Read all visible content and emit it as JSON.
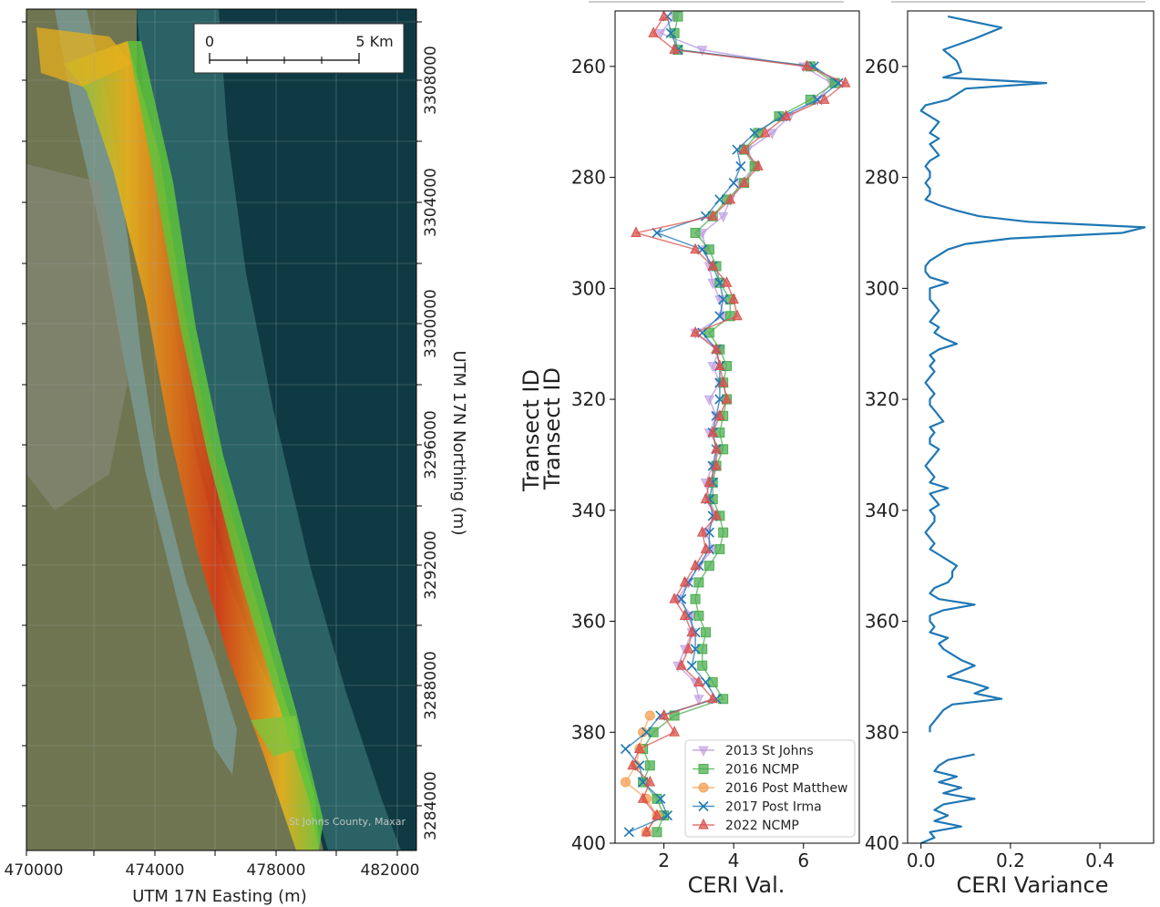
{
  "map": {
    "scalebar_start": "0",
    "scalebar_end": "5 Km",
    "attribution": "St Johns County, Maxar",
    "x_ticks": [
      "470000",
      "474000",
      "478000",
      "482000"
    ],
    "y_ticks": [
      "3308000",
      "3304000",
      "3300000",
      "3296000",
      "3292000",
      "3288000",
      "3284000"
    ],
    "xlabel": "UTM 17N Easting (m)",
    "ylabel": "UTM 17N Northing (m)",
    "colors": {
      "water": "#0f3a43",
      "land": "#6f7550",
      "beach_high": "#d43a14",
      "beach_mid": "#e7b01c",
      "beach_low": "#7cc63c"
    }
  },
  "chart_data": [
    {
      "type": "line",
      "xlabel": "CERI Val.",
      "ylabel": "Transect ID",
      "xlim": [
        0.6,
        7.6
      ],
      "ylim": [
        400,
        250
      ],
      "x_ticks": [
        2,
        4,
        6
      ],
      "y_ticks": [
        260,
        280,
        300,
        320,
        340,
        360,
        380,
        400
      ],
      "legend_loc": "lower right",
      "transect_step": 3,
      "series": [
        {
          "name": "2013 St Johns",
          "color": "#b994e0",
          "marker": "tri_down",
          "transects": [
            251,
            254,
            257,
            260,
            263,
            266,
            269,
            272,
            275,
            278,
            281,
            284,
            287,
            290,
            293,
            296,
            299,
            302,
            305,
            308,
            311,
            314,
            317,
            320,
            323,
            326,
            329,
            332,
            335,
            338,
            341,
            344,
            347,
            350,
            353,
            356,
            359,
            362,
            365,
            368,
            371,
            374
          ],
          "values": [
            2.3,
            1.9,
            3.1,
            6.0,
            6.8,
            6.4,
            5.6,
            5.1,
            4.4,
            4.6,
            4.2,
            3.9,
            3.7,
            3.1,
            3.2,
            3.3,
            3.4,
            3.6,
            3.7,
            2.9,
            3.6,
            3.4,
            3.6,
            3.3,
            3.5,
            3.3,
            3.6,
            3.4,
            3.2,
            3.3,
            3.5,
            3.2,
            3.4,
            3.0,
            2.7,
            2.4,
            2.8,
            2.8,
            2.6,
            2.4,
            2.9,
            3.0
          ]
        },
        {
          "name": "2016 NCMP",
          "color": "#4caf50",
          "marker": "square",
          "transects": [
            251,
            254,
            257,
            260,
            263,
            266,
            269,
            272,
            275,
            278,
            281,
            284,
            287,
            290,
            293,
            296,
            299,
            302,
            305,
            308,
            311,
            314,
            317,
            320,
            323,
            326,
            329,
            332,
            335,
            338,
            341,
            344,
            347,
            350,
            353,
            356,
            359,
            362,
            365,
            368,
            371,
            374,
            377,
            380,
            383,
            386,
            389,
            392,
            395,
            398
          ],
          "values": [
            2.4,
            2.3,
            2.4,
            6.2,
            6.9,
            6.2,
            5.3,
            4.7,
            4.3,
            4.6,
            4.3,
            3.8,
            3.4,
            2.9,
            3.3,
            3.5,
            3.6,
            3.9,
            3.9,
            3.3,
            3.6,
            3.8,
            3.7,
            3.8,
            3.7,
            3.6,
            3.7,
            3.5,
            3.4,
            3.4,
            3.6,
            3.7,
            3.6,
            3.3,
            3.0,
            2.9,
            3.0,
            3.2,
            3.1,
            3.1,
            3.4,
            3.7,
            2.3,
            1.7,
            1.4,
            1.6,
            1.4,
            1.8,
            2.0,
            1.8
          ]
        },
        {
          "name": "2016 Post Matthew",
          "color": "#f5a55a",
          "marker": "circle",
          "transects": [
            377,
            380,
            383,
            386,
            389,
            392,
            395,
            398
          ],
          "values": [
            1.6,
            1.4,
            1.3,
            1.2,
            0.9,
            1.5,
            1.8,
            1.5
          ]
        },
        {
          "name": "2017 Post Irma",
          "color": "#1f77b4",
          "marker": "x",
          "transects": [
            251,
            254,
            257,
            260,
            263,
            266,
            269,
            272,
            275,
            278,
            281,
            284,
            287,
            290,
            293,
            296,
            299,
            302,
            305,
            308,
            311,
            314,
            317,
            320,
            323,
            326,
            329,
            332,
            335,
            338,
            341,
            344,
            347,
            350,
            353,
            356,
            359,
            362,
            365,
            368,
            371,
            374,
            377,
            380,
            383,
            386,
            389,
            392,
            395,
            398
          ],
          "values": [
            2.1,
            2.2,
            2.4,
            6.3,
            7.0,
            6.4,
            5.4,
            4.6,
            4.1,
            4.2,
            4.0,
            3.6,
            3.2,
            1.8,
            3.1,
            3.4,
            3.6,
            3.7,
            3.6,
            3.1,
            3.5,
            3.6,
            3.6,
            3.6,
            3.5,
            3.4,
            3.5,
            3.4,
            3.4,
            3.3,
            3.4,
            3.3,
            3.3,
            3.0,
            2.7,
            2.5,
            2.7,
            2.9,
            2.9,
            2.8,
            3.2,
            3.5,
            1.9,
            1.5,
            0.9,
            1.3,
            1.4,
            1.9,
            2.1,
            1.0
          ]
        },
        {
          "name": "2022 NCMP",
          "color": "#d9534f",
          "marker": "tri_up",
          "transects": [
            251,
            254,
            257,
            260,
            263,
            266,
            269,
            272,
            275,
            278,
            281,
            284,
            287,
            290,
            293,
            296,
            299,
            302,
            305,
            308,
            311,
            314,
            317,
            320,
            323,
            326,
            329,
            332,
            335,
            338,
            341,
            344,
            347,
            350,
            353,
            356,
            359,
            362,
            365,
            368,
            371,
            374,
            377,
            380,
            383,
            386,
            389,
            392,
            395,
            398
          ],
          "values": [
            2.0,
            1.7,
            2.3,
            6.1,
            7.2,
            6.6,
            5.5,
            4.9,
            4.3,
            4.7,
            4.3,
            3.9,
            3.4,
            1.2,
            2.9,
            3.4,
            3.8,
            4.0,
            4.1,
            2.9,
            3.5,
            3.6,
            3.7,
            3.8,
            3.6,
            3.4,
            3.5,
            3.5,
            3.3,
            3.2,
            3.5,
            3.1,
            3.2,
            2.9,
            2.6,
            2.3,
            2.6,
            2.8,
            2.7,
            2.5,
            3.0,
            3.4,
            2.0,
            2.3,
            1.3,
            1.1,
            1.6,
            1.4,
            1.8,
            1.5
          ]
        }
      ]
    },
    {
      "type": "line",
      "xlabel": "CERI Variance",
      "xlim": [
        -0.03,
        0.52
      ],
      "ylim": [
        400,
        250
      ],
      "x_ticks": [
        0.0,
        0.2,
        0.4
      ],
      "x_tick_labels": [
        "0.0",
        "0.2",
        "0.4"
      ],
      "y_ticks": [
        260,
        280,
        300,
        320,
        340,
        360,
        380,
        400
      ],
      "series": [
        {
          "name": "",
          "color": "#1f77b4",
          "segments": [
            {
              "transects": [
                251,
                253,
                255,
                257,
                259,
                261,
                262,
                263,
                264,
                265,
                266,
                267,
                268,
                269,
                270,
                271,
                272,
                273,
                274,
                275,
                276,
                277,
                278,
                279,
                280,
                281,
                282,
                283,
                284,
                285,
                286,
                287,
                288,
                289,
                290,
                291,
                292,
                293,
                294,
                295,
                296,
                297,
                298,
                299,
                300,
                301,
                302,
                303,
                304,
                305,
                306,
                307,
                308,
                309,
                310,
                311,
                312,
                313,
                314,
                315,
                316,
                317,
                318,
                319,
                320,
                321,
                322,
                323,
                324,
                325,
                326,
                327,
                328,
                329,
                330,
                331,
                332,
                333,
                334,
                335,
                336,
                337,
                338,
                339,
                340,
                341,
                342,
                343,
                344,
                345,
                346,
                347,
                348,
                349,
                350,
                351,
                352,
                353,
                354,
                355,
                356,
                357,
                358,
                359,
                360,
                361,
                362,
                363,
                364,
                365,
                366,
                367,
                368,
                369,
                370,
                371,
                372,
                373,
                374,
                375,
                376,
                377,
                378,
                379,
                380
              ],
              "values": [
                0.06,
                0.18,
                0.12,
                0.05,
                0.08,
                0.09,
                0.05,
                0.28,
                0.1,
                0.08,
                0.06,
                0.01,
                0.0,
                0.02,
                0.04,
                0.03,
                0.02,
                0.04,
                0.02,
                0.03,
                0.04,
                0.02,
                0.01,
                0.02,
                0.02,
                0.01,
                0.02,
                0.02,
                0.01,
                0.04,
                0.08,
                0.13,
                0.24,
                0.5,
                0.45,
                0.2,
                0.1,
                0.06,
                0.04,
                0.02,
                0.01,
                0.01,
                0.02,
                0.06,
                0.02,
                0.02,
                0.02,
                0.03,
                0.04,
                0.03,
                0.02,
                0.04,
                0.03,
                0.05,
                0.08,
                0.04,
                0.02,
                0.03,
                0.02,
                0.03,
                0.02,
                0.01,
                0.02,
                0.03,
                0.02,
                0.02,
                0.03,
                0.04,
                0.05,
                0.02,
                0.03,
                0.02,
                0.02,
                0.04,
                0.03,
                0.02,
                0.01,
                0.02,
                0.03,
                0.02,
                0.06,
                0.02,
                0.03,
                0.04,
                0.02,
                0.03,
                0.03,
                0.02,
                0.01,
                0.02,
                0.03,
                0.02,
                0.04,
                0.06,
                0.08,
                0.07,
                0.07,
                0.06,
                0.03,
                0.02,
                0.04,
                0.12,
                0.05,
                0.02,
                0.02,
                0.03,
                0.02,
                0.06,
                0.04,
                0.05,
                0.07,
                0.09,
                0.12,
                0.09,
                0.06,
                0.11,
                0.15,
                0.12,
                0.18,
                0.07,
                0.05,
                0.04,
                0.03,
                0.02,
                0.02
              ]
            },
            {
              "transects": [
                384,
                385,
                386,
                387,
                388,
                389,
                390,
                391,
                392,
                393,
                394,
                395,
                396,
                397,
                398,
                399,
                400
              ],
              "values": [
                0.12,
                0.06,
                0.04,
                0.03,
                0.08,
                0.04,
                0.09,
                0.05,
                0.12,
                0.05,
                0.03,
                0.06,
                0.03,
                0.09,
                0.02,
                0.03,
                0.0
              ]
            }
          ]
        }
      ]
    }
  ]
}
